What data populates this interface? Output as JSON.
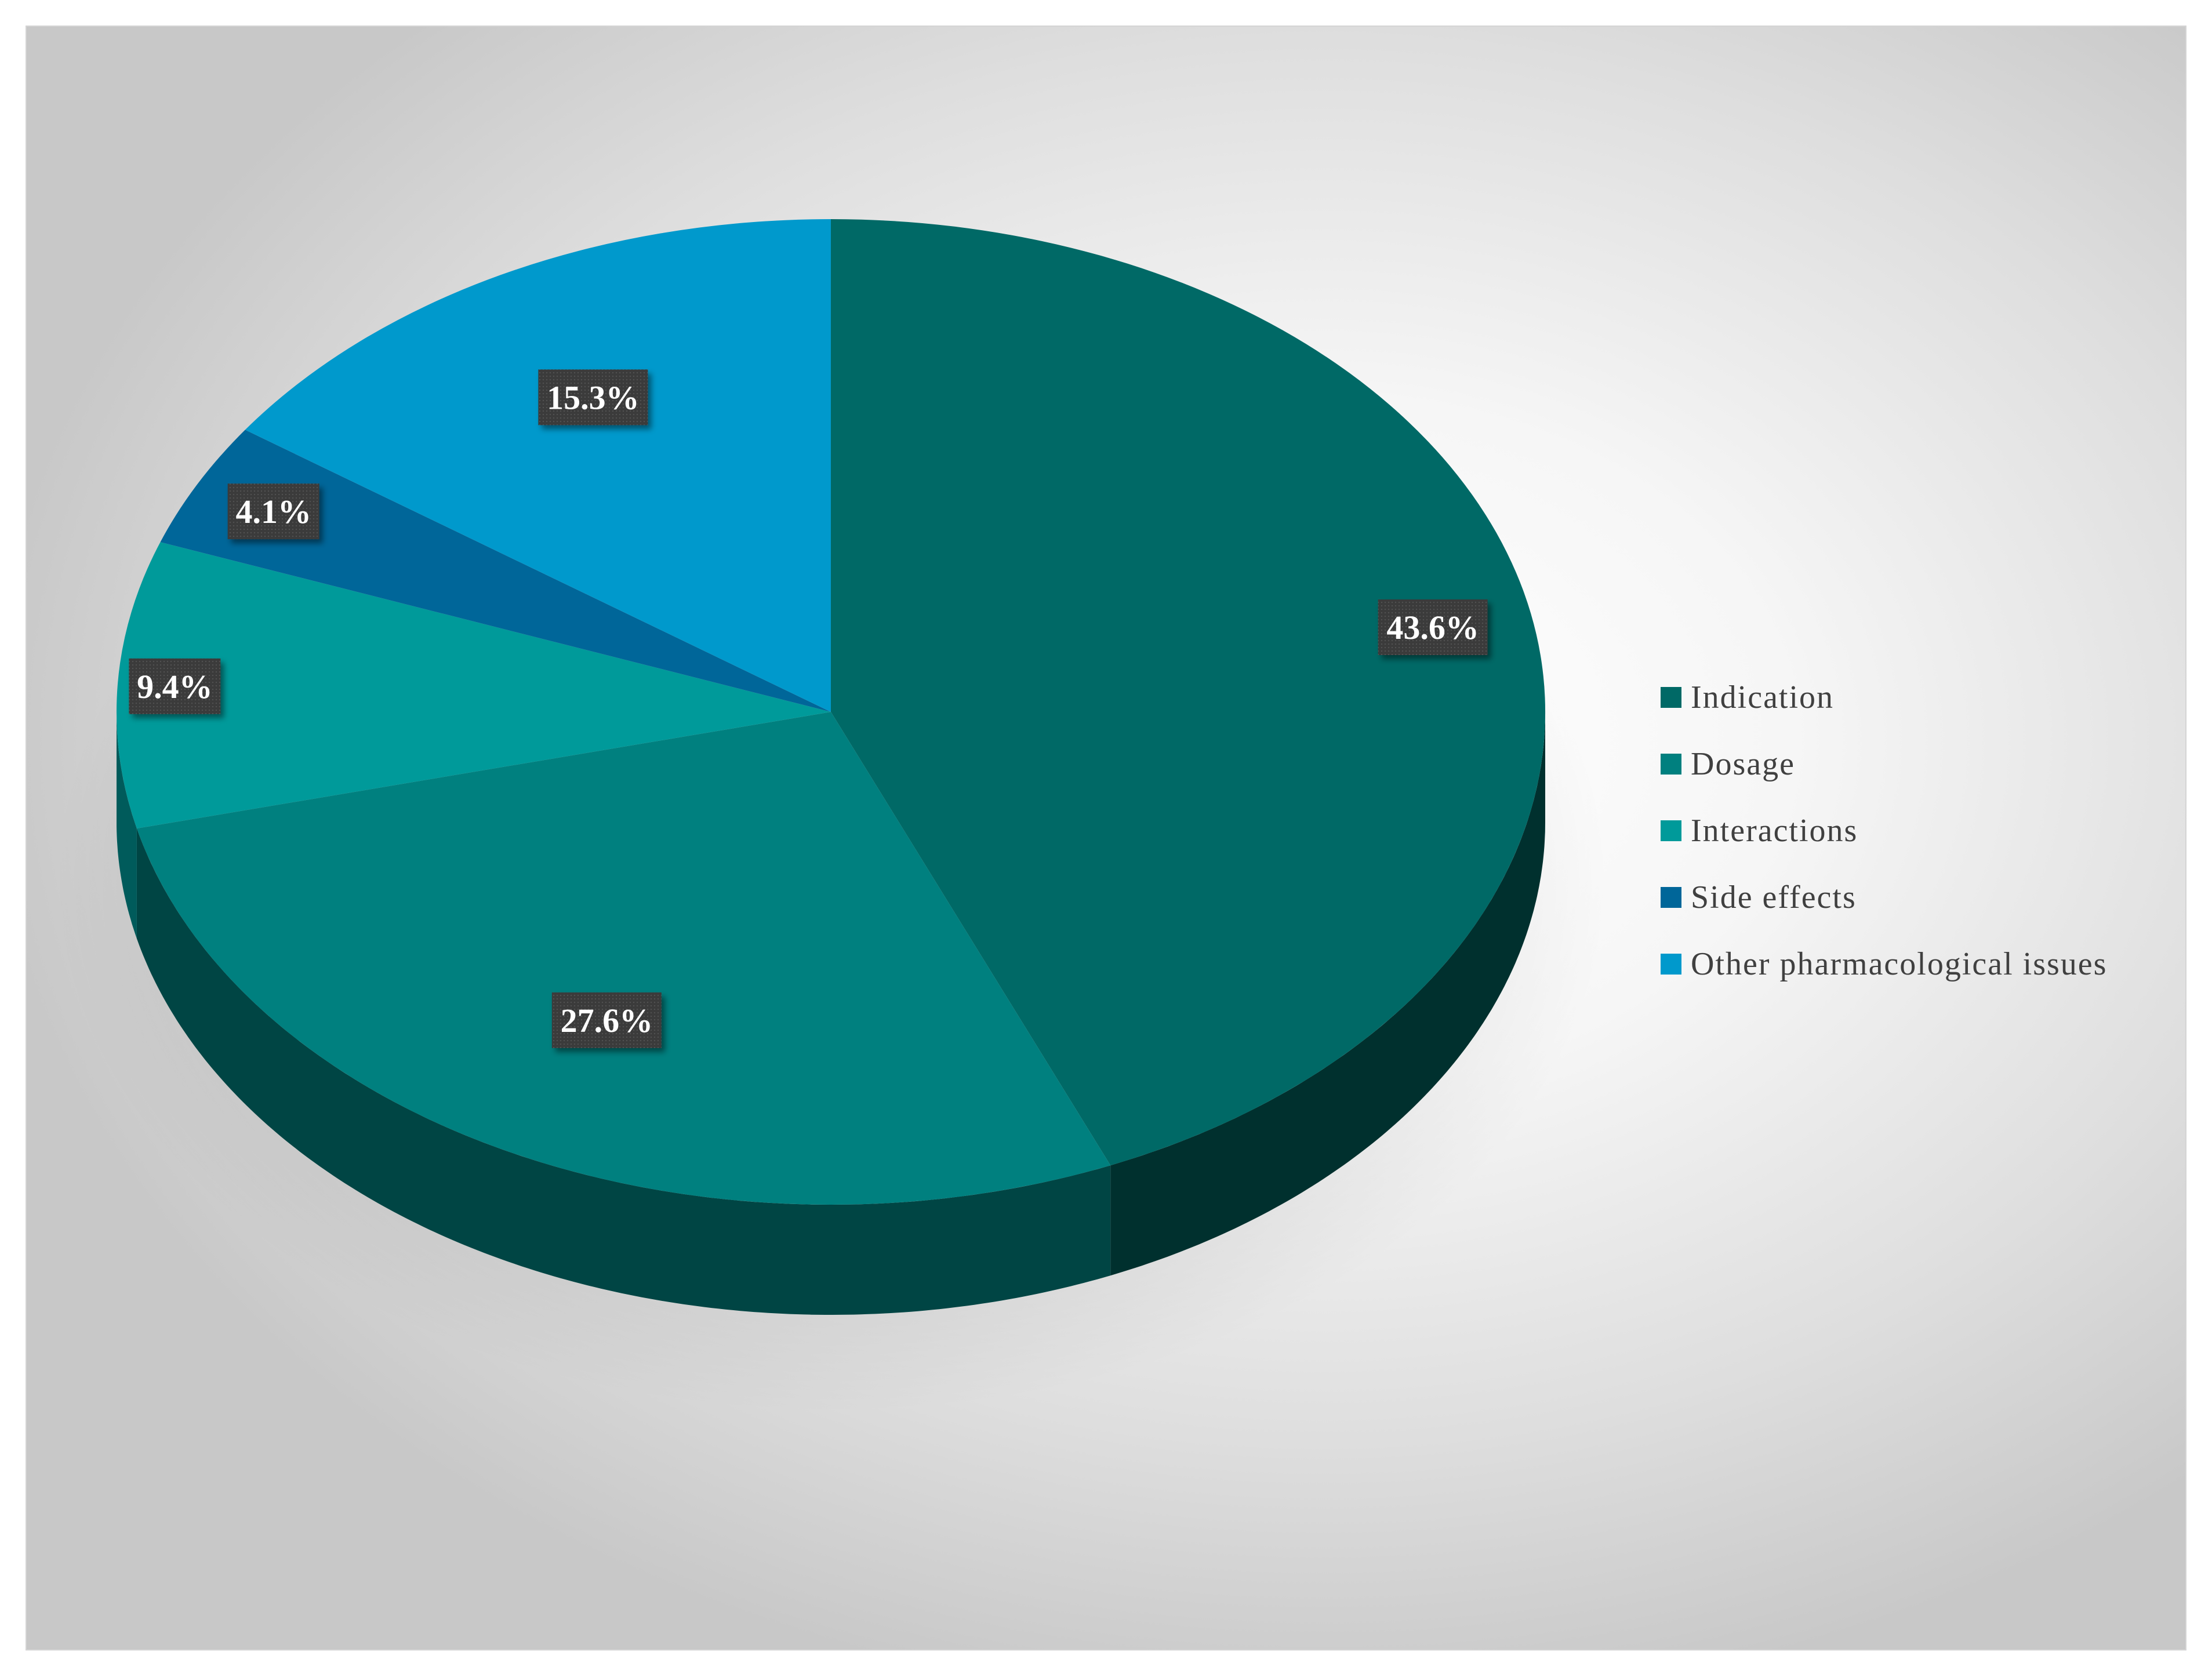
{
  "chart_data": {
    "type": "pie",
    "style": "3d",
    "title": "",
    "slices": [
      {
        "label": "Indication",
        "value": 43.6,
        "display": "43.6%",
        "color": "#006966"
      },
      {
        "label": "Dosage",
        "value": 27.6,
        "display": "27.6%",
        "color": "#00807f"
      },
      {
        "label": "Interactions",
        "value": 9.4,
        "display": "9.4%",
        "color": "#009a9a"
      },
      {
        "label": "Side effects",
        "value": 4.1,
        "display": "4.1%",
        "color": "#006699"
      },
      {
        "label": "Other pharmacological issues",
        "value": 15.3,
        "display": "15.3%",
        "color": "#0099cc"
      }
    ],
    "legend_position": "right",
    "data_label_background": "#3a3a3a"
  }
}
